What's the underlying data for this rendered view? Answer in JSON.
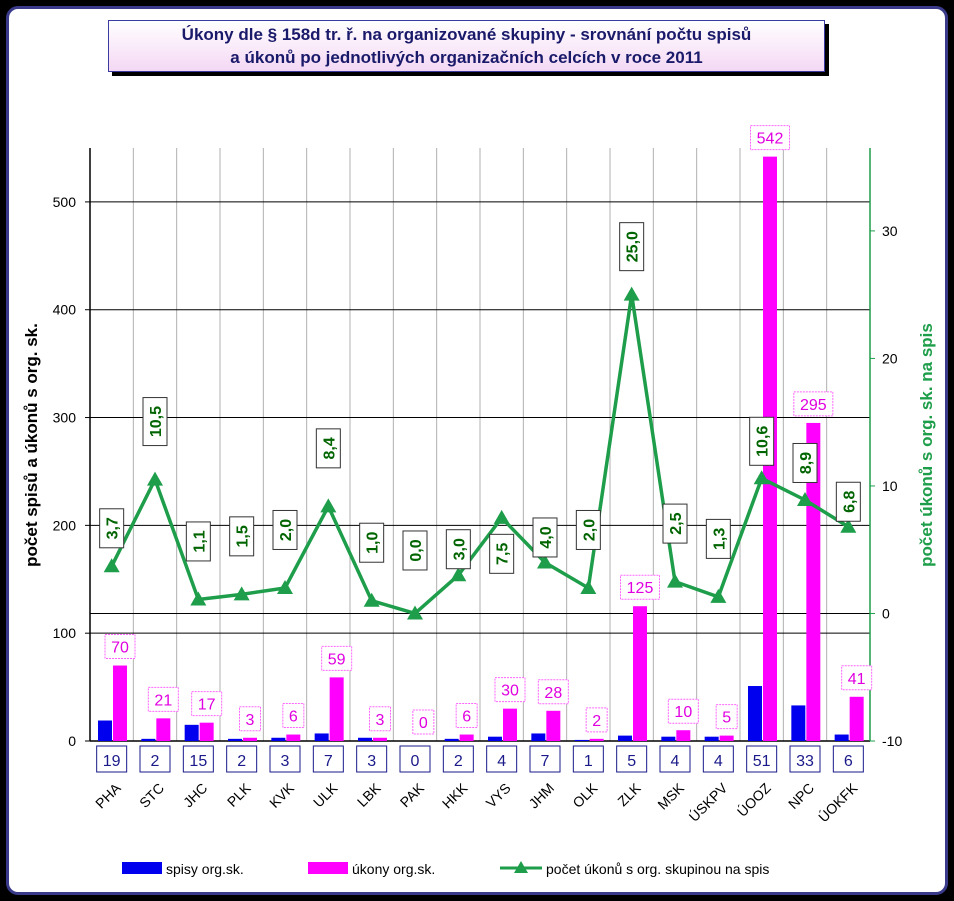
{
  "title_lines": [
    "Úkony dle § 158d tr. ř. na organizované skupiny -  srovnání počtu spisů",
    "a úkonů po jednotlivých organizačních celcích v roce 2011"
  ],
  "chart_data": {
    "type": "bar",
    "title": "Úkony dle § 158d tr. ř. na organizované skupiny -  srovnání počtu spisů a úkonů po jednotlivých organizačních celcích v roce 2011",
    "ylabel": "počet spisů a úkonů s org. sk.",
    "y2label": "počet úkonů s org. sk. na spis",
    "ylim": [
      0,
      550
    ],
    "y_ticks": [
      0,
      100,
      200,
      300,
      400,
      500
    ],
    "y2lim": [
      -10,
      36.5
    ],
    "y2_ticks": [
      -10,
      0,
      10,
      20,
      30
    ],
    "grid": true,
    "legend_position": "bottom",
    "categories": [
      "PHA",
      "STC",
      "JHC",
      "PLK",
      "KVK",
      "ULK",
      "LBK",
      "PAK",
      "HKK",
      "VYS",
      "JHM",
      "OLK",
      "ZLK",
      "MSK",
      "ÚSKPV",
      "ÚOOZ",
      "NPC",
      "ÚOKFK"
    ],
    "series": [
      {
        "name": "spisy org.sk.",
        "type": "bar",
        "axis": "left",
        "color": "#0000ee",
        "values": [
          19,
          2,
          15,
          2,
          3,
          7,
          3,
          0,
          2,
          4,
          7,
          1,
          5,
          4,
          4,
          51,
          33,
          6
        ],
        "labels": [
          "19",
          "2",
          "15",
          "2",
          "3",
          "7",
          "3",
          "0",
          "2",
          "4",
          "7",
          "1",
          "5",
          "4",
          "4",
          "51",
          "33",
          "6"
        ]
      },
      {
        "name": "úkony org.sk.",
        "type": "bar",
        "axis": "left",
        "color": "#ff00ff",
        "values": [
          70,
          21,
          17,
          3,
          6,
          59,
          3,
          0,
          6,
          30,
          28,
          2,
          125,
          10,
          5,
          542,
          295,
          41
        ],
        "labels": [
          "70",
          "21",
          "17",
          "3",
          "6",
          "59",
          "3",
          "0",
          "6",
          "30",
          "28",
          "2",
          "125",
          "10",
          "5",
          "542",
          "295",
          "41"
        ]
      },
      {
        "name": "počet úkonů s org. skupinou na spis",
        "type": "line",
        "axis": "right",
        "color": "#1e9e4a",
        "values": [
          3.7,
          10.5,
          1.1,
          1.5,
          2.0,
          8.4,
          1.0,
          0.0,
          3.0,
          7.5,
          4.0,
          2.0,
          25.0,
          2.5,
          1.3,
          10.6,
          8.9,
          6.8
        ],
        "labels": [
          "3,7",
          "10,5",
          "1,1",
          "1,5",
          "2,0",
          "8,4",
          "1,0",
          "0,0",
          "3,0",
          "7,5",
          "4,0",
          "2,0",
          "25,0",
          "2,5",
          "1,3",
          "10,6",
          "8,9",
          "6,8"
        ]
      }
    ]
  },
  "colors": {
    "frame_border": "#3a3a8a",
    "title_text": "#1a1a6a",
    "label_navy": "#1a1a8a",
    "right_axis": "#1e9e4a",
    "line_label_text": "#006400"
  }
}
